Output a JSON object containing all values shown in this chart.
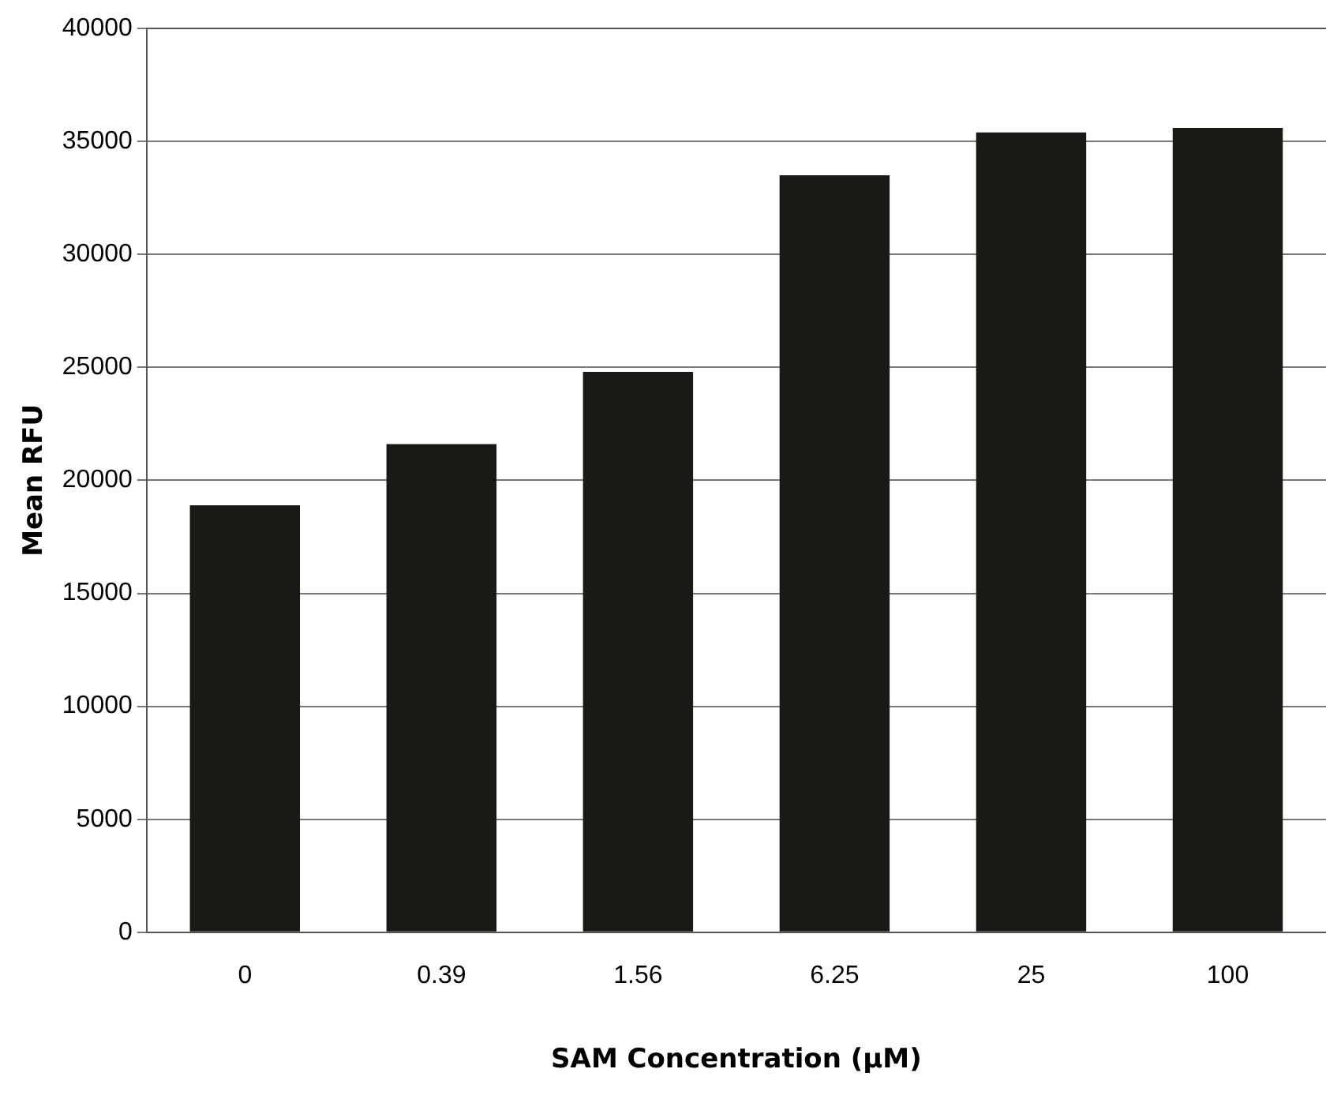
{
  "chart_data": {
    "type": "bar",
    "xlabel": "SAM Concentration (µM)",
    "ylabel": "Mean RFU",
    "categories": [
      "0",
      "0.39",
      "1.56",
      "6.25",
      "25",
      "100"
    ],
    "values": [
      18900,
      21600,
      24800,
      33500,
      35400,
      35600
    ],
    "color": "#1a1916",
    "ylim": [
      0,
      40000
    ],
    "yticks": [
      0,
      5000,
      10000,
      15000,
      20000,
      25000,
      30000,
      35000,
      40000
    ],
    "grid": "y",
    "legend": false
  }
}
